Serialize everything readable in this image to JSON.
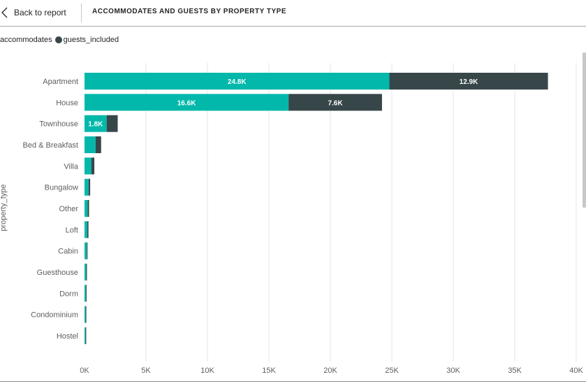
{
  "header": {
    "back_label": "Back to report",
    "title": "ACCOMMODATES AND GUESTS BY PROPERTY TYPE"
  },
  "legend": {
    "items": [
      {
        "label": "accommodates",
        "color": "#01B8AA"
      },
      {
        "label": "guests_included",
        "color": "#374649"
      }
    ]
  },
  "chart_data": {
    "type": "bar",
    "orientation": "horizontal",
    "stacked": true,
    "ylabel": "property_type",
    "categories": [
      "Apartment",
      "House",
      "Townhouse",
      "Bed & Breakfast",
      "Villa",
      "Bungalow",
      "Other",
      "Loft",
      "Cabin",
      "Guesthouse",
      "Dorm",
      "Condominium",
      "Hostel"
    ],
    "series": [
      {
        "name": "accommodates",
        "color": "#01B8AA",
        "values": [
          24800,
          16600,
          1800,
          900,
          550,
          330,
          260,
          230,
          190,
          140,
          110,
          90,
          80
        ],
        "labels": [
          "24.8K",
          "16.6K",
          "1.8K",
          "",
          "",
          "",
          "",
          "",
          "",
          "",
          "",
          "",
          ""
        ]
      },
      {
        "name": "guests_included",
        "color": "#374649",
        "values": [
          12900,
          7600,
          900,
          450,
          250,
          130,
          110,
          90,
          50,
          30,
          40,
          30,
          30
        ],
        "labels": [
          "12.9K",
          "7.6K",
          "",
          "",
          "",
          "",
          "",
          "",
          "",
          "",
          "",
          "",
          ""
        ]
      }
    ],
    "xlim": [
      0,
      40000
    ],
    "x_ticks": [
      0,
      5000,
      10000,
      15000,
      20000,
      25000,
      30000,
      35000,
      40000
    ],
    "x_tick_labels": [
      "0K",
      "5K",
      "10K",
      "15K",
      "20K",
      "25K",
      "30K",
      "35K",
      "40K"
    ],
    "grid": true
  }
}
